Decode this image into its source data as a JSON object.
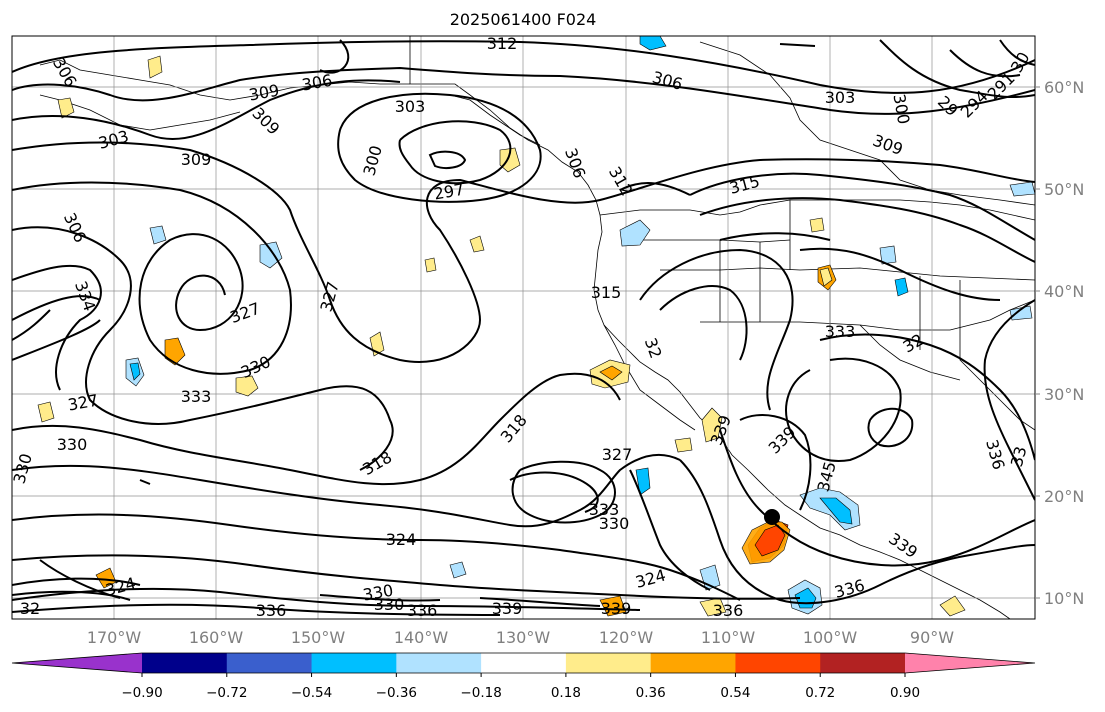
{
  "title": "2025061400 F024",
  "longitude_labels": [
    "170°W",
    "160°W",
    "150°W",
    "140°W",
    "130°W",
    "120°W",
    "110°W",
    "100°W",
    "90°W"
  ],
  "latitude_labels": [
    "60°N",
    "50°N",
    "40°N",
    "30°N",
    "20°N",
    "10°N"
  ],
  "colorbar": {
    "colors": [
      "#9932cc",
      "#00008b",
      "#3a5fcd",
      "#00bfff",
      "#b0e2ff",
      "#ffffff",
      "#ffec8b",
      "#ffa500",
      "#ff4500",
      "#b22222",
      "#ff82ab"
    ],
    "tick_labels": [
      "−0.90",
      "−0.72",
      "−0.54",
      "−0.36",
      "−0.18",
      "0.18",
      "0.36",
      "0.54",
      "0.72",
      "0.90"
    ]
  },
  "contour_labels": [
    {
      "text": "312"
    },
    {
      "text": "306"
    },
    {
      "text": "303"
    },
    {
      "text": "291"
    },
    {
      "text": "294"
    },
    {
      "text": "29"
    },
    {
      "text": "300"
    },
    {
      "text": "309"
    },
    {
      "text": "315"
    },
    {
      "text": "30"
    },
    {
      "text": "306"
    },
    {
      "text": "303"
    },
    {
      "text": "309"
    },
    {
      "text": "309"
    },
    {
      "text": "303"
    },
    {
      "text": "309"
    },
    {
      "text": "300"
    },
    {
      "text": "297"
    },
    {
      "text": "306"
    },
    {
      "text": "312"
    },
    {
      "text": "306"
    },
    {
      "text": "306"
    },
    {
      "text": "327"
    },
    {
      "text": "327"
    },
    {
      "text": "330"
    },
    {
      "text": "333"
    },
    {
      "text": "327"
    },
    {
      "text": "330"
    },
    {
      "text": "330"
    },
    {
      "text": "318"
    },
    {
      "text": "318"
    },
    {
      "text": "315"
    },
    {
      "text": "32"
    },
    {
      "text": "333"
    },
    {
      "text": "32"
    },
    {
      "text": "327"
    },
    {
      "text": "339"
    },
    {
      "text": "339"
    },
    {
      "text": "345"
    },
    {
      "text": "336"
    },
    {
      "text": "33"
    },
    {
      "text": "333"
    },
    {
      "text": "330"
    },
    {
      "text": "324"
    },
    {
      "text": "324"
    },
    {
      "text": "330"
    },
    {
      "text": "330"
    },
    {
      "text": "336"
    },
    {
      "text": "336"
    },
    {
      "text": "339"
    },
    {
      "text": "339"
    },
    {
      "text": "336"
    },
    {
      "text": "336"
    },
    {
      "text": "339"
    },
    {
      "text": "324"
    },
    {
      "text": "32"
    },
    {
      "text": "334"
    }
  ]
}
